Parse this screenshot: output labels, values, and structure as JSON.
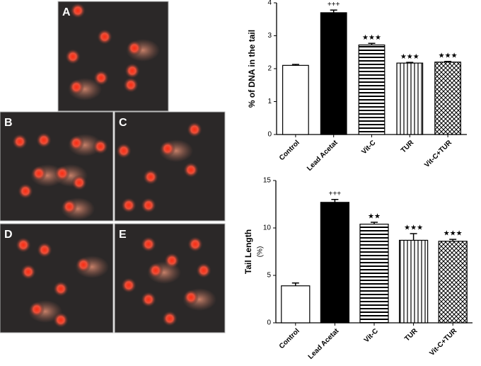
{
  "panels": [
    {
      "label": "A"
    },
    {
      "label": "B"
    },
    {
      "label": "C"
    },
    {
      "label": "D"
    },
    {
      "label": "E"
    }
  ],
  "chart_data": [
    {
      "type": "bar",
      "ylabel": "% of DNA in the tail",
      "categories": [
        "Control",
        "Lead Acetat",
        "Vit-C",
        "TUR",
        "Vit-C+TUR"
      ],
      "values": [
        2.1,
        3.7,
        2.72,
        2.17,
        2.2
      ],
      "errors": [
        0.03,
        0.08,
        0.05,
        0.02,
        0.02
      ],
      "annotations": [
        null,
        "+++",
        "★★★",
        "★★★",
        "★★★"
      ],
      "ylim": [
        0,
        4
      ],
      "yticks": [
        0,
        1,
        2,
        3,
        4
      ]
    },
    {
      "type": "bar",
      "ylabel": "Tail Length",
      "ylabel_unit": "(%)",
      "categories": [
        "Control",
        "Lead Acetat",
        "Vit-C",
        "TUR",
        "Vit-C+TUR"
      ],
      "values": [
        3.9,
        12.7,
        10.4,
        8.7,
        8.6
      ],
      "errors": [
        0.3,
        0.3,
        0.2,
        0.7,
        0.2
      ],
      "annotations": [
        null,
        "+++",
        "★★",
        "★★★",
        "★★★"
      ],
      "ylim": [
        0,
        15
      ],
      "yticks": [
        0,
        5,
        10,
        15
      ]
    }
  ]
}
